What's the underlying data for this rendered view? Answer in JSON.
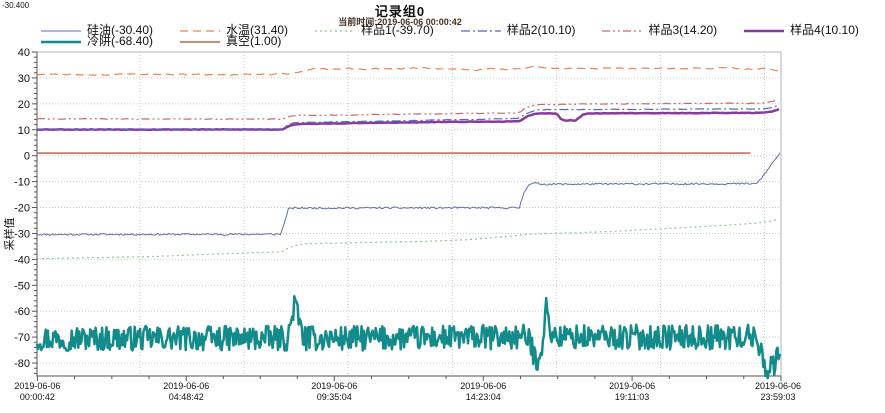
{
  "corner_value": "-30.400",
  "header": {
    "title": "记录组0",
    "subtitle": "当前时间:2019-06-06  00:00:42"
  },
  "colors": {
    "background": "#ffffff",
    "frame": "#b0b0b0",
    "axis": "#555555",
    "grid": "#c9c9c9",
    "text": "#111111",
    "subtitle_text": "#46311f"
  },
  "chart_data": {
    "type": "line",
    "title": "记录组0",
    "subtitle": "当前时间:2019-06-06  00:00:42",
    "ylabel": "采样值",
    "xlabel": "",
    "ylim": [
      -85,
      40
    ],
    "y_ticks": [
      40,
      30,
      20,
      10,
      0,
      -10,
      -20,
      -30,
      -40,
      -50,
      -60,
      -70,
      -80
    ],
    "y_minor_step": 2,
    "grid": true,
    "legend_position": "top-left",
    "x_ticks": [
      {
        "hour": 0.012,
        "date": "2019-06-06",
        "time": "00:00:42"
      },
      {
        "hour": 4.812,
        "date": "2019-06-06",
        "time": "04:48:42"
      },
      {
        "hour": 9.584,
        "date": "2019-06-06",
        "time": "09:35:04"
      },
      {
        "hour": 14.385,
        "date": "2019-06-06",
        "time": "14:23:04"
      },
      {
        "hour": 19.184,
        "date": "2019-06-06",
        "time": "19:11:03"
      },
      {
        "hour": 23.984,
        "date": "2019-06-06",
        "time": "23:59:03"
      }
    ],
    "x_grid_hours": [
      3.32,
      6.68,
      10.03,
      13.39,
      16.74,
      20.1,
      23.45
    ],
    "series": [
      {
        "name": "硅油",
        "current": "-30.40",
        "color": "#5f6cb0",
        "width": 1,
        "dash": "",
        "row": 0,
        "z": 2,
        "noise": 0.35,
        "step": 0.05,
        "seed": 11,
        "points": [
          [
            0,
            -30.4
          ],
          [
            7.85,
            -30.3
          ],
          [
            8.0,
            -25.0
          ],
          [
            8.1,
            -20.6
          ],
          [
            8.3,
            -20.2
          ],
          [
            15.55,
            -20.1
          ],
          [
            15.7,
            -14.0
          ],
          [
            15.85,
            -11.2
          ],
          [
            16.05,
            -10.6
          ],
          [
            16.3,
            -11.0
          ],
          [
            23.2,
            -10.8
          ],
          [
            23.5,
            -6.5
          ],
          [
            23.75,
            -2.0
          ],
          [
            23.984,
            1.3
          ]
        ]
      },
      {
        "name": "水温",
        "current": "31.40",
        "color": "#ee8152",
        "width": 1.2,
        "dash": "8,5",
        "row": 0,
        "z": 3,
        "noise": 0.22,
        "step": 0.12,
        "seed": 23,
        "points": [
          [
            0,
            31.4
          ],
          [
            1,
            31.3
          ],
          [
            2,
            31.2
          ],
          [
            3,
            31.5
          ],
          [
            4,
            31.3
          ],
          [
            5,
            31.4
          ],
          [
            6,
            31.2
          ],
          [
            7,
            31.5
          ],
          [
            7.8,
            31.4
          ],
          [
            8.1,
            31.7
          ],
          [
            8.5,
            32.3
          ],
          [
            8.9,
            33.5
          ],
          [
            9.5,
            33.4
          ],
          [
            10,
            33.6
          ],
          [
            10.5,
            33.3
          ],
          [
            11,
            33.6
          ],
          [
            11.5,
            33.4
          ],
          [
            12,
            33.8
          ],
          [
            12.4,
            34.0
          ],
          [
            12.7,
            33.5
          ],
          [
            13.2,
            33.7
          ],
          [
            13.7,
            33.2
          ],
          [
            14.2,
            33.0
          ],
          [
            14.6,
            33.6
          ],
          [
            15.1,
            33.3
          ],
          [
            15.6,
            33.4
          ],
          [
            16.1,
            34.5
          ],
          [
            16.35,
            33.9
          ],
          [
            16.7,
            33.5
          ],
          [
            17.2,
            33.8
          ],
          [
            17.8,
            33.6
          ],
          [
            18.3,
            33.8
          ],
          [
            19,
            33.6
          ],
          [
            19.5,
            33.7
          ],
          [
            20,
            33.8
          ],
          [
            20.6,
            33.6
          ],
          [
            21.2,
            33.8
          ],
          [
            21.8,
            33.7
          ],
          [
            22.4,
            33.8
          ],
          [
            23,
            33.3
          ],
          [
            23.4,
            33.6
          ],
          [
            23.7,
            33.2
          ],
          [
            23.984,
            32.7
          ]
        ]
      },
      {
        "name": "样品1",
        "current": "-39.70",
        "color": "#93c793",
        "width": 1.2,
        "dash": "2,3",
        "row": 0,
        "z": 1,
        "noise": 0.06,
        "step": 0.12,
        "seed": 5,
        "points": [
          [
            0,
            -39.7
          ],
          [
            1,
            -39.5
          ],
          [
            2,
            -39.3
          ],
          [
            3,
            -39.1
          ],
          [
            4,
            -38.8
          ],
          [
            5,
            -38.3
          ],
          [
            6,
            -37.8
          ],
          [
            7,
            -37.4
          ],
          [
            7.9,
            -37.1
          ],
          [
            8.2,
            -35.0
          ],
          [
            8.6,
            -34.0
          ],
          [
            9.5,
            -33.8
          ],
          [
            11,
            -33.4
          ],
          [
            12.5,
            -33.1
          ],
          [
            14,
            -32.3
          ],
          [
            15.3,
            -31.0
          ],
          [
            15.8,
            -30.3
          ],
          [
            16.5,
            -30.0
          ],
          [
            17.5,
            -29.7
          ],
          [
            18.5,
            -29.2
          ],
          [
            19.5,
            -28.6
          ],
          [
            20.5,
            -28.0
          ],
          [
            21.5,
            -27.3
          ],
          [
            22.5,
            -26.6
          ],
          [
            23.2,
            -26.0
          ],
          [
            23.6,
            -25.4
          ],
          [
            23.984,
            -24.5
          ]
        ]
      },
      {
        "name": "样品2",
        "current": "10.10",
        "color": "#5068c0",
        "width": 1.2,
        "dash": "9,3,2,3",
        "row": 0,
        "z": 7,
        "noise": 0.1,
        "step": 0.12,
        "seed": 31,
        "points": [
          [
            0,
            10.1
          ],
          [
            7.9,
            10.1
          ],
          [
            8.1,
            12.0
          ],
          [
            8.3,
            12.7
          ],
          [
            9,
            12.9
          ],
          [
            10,
            13.1
          ],
          [
            11,
            13.3
          ],
          [
            12,
            13.5
          ],
          [
            13,
            13.8
          ],
          [
            14,
            14.0
          ],
          [
            15.55,
            14.4
          ],
          [
            15.75,
            16.2
          ],
          [
            16.05,
            17.6
          ],
          [
            16.5,
            17.8
          ],
          [
            17.5,
            17.8
          ],
          [
            18.5,
            17.9
          ],
          [
            20,
            17.9
          ],
          [
            21.5,
            18.0
          ],
          [
            23,
            18.0
          ],
          [
            23.4,
            18.1
          ],
          [
            23.7,
            18.6
          ],
          [
            23.984,
            19.6
          ]
        ]
      },
      {
        "name": "样品3",
        "current": "14.20",
        "color": "#ca6868",
        "width": 1.2,
        "dash": "8,3,2,3,2,3",
        "row": 0,
        "z": 8,
        "noise": 0.13,
        "step": 0.12,
        "seed": 41,
        "points": [
          [
            0,
            14.2
          ],
          [
            7.9,
            14.1
          ],
          [
            8.1,
            15.0
          ],
          [
            8.35,
            15.5
          ],
          [
            9,
            15.6
          ],
          [
            10,
            15.7
          ],
          [
            11,
            15.9
          ],
          [
            12,
            16.0
          ],
          [
            13,
            16.2
          ],
          [
            14,
            16.3
          ],
          [
            15.55,
            16.6
          ],
          [
            15.75,
            18.4
          ],
          [
            16.05,
            19.6
          ],
          [
            16.6,
            19.8
          ],
          [
            17.5,
            19.9
          ],
          [
            18.5,
            20.0
          ],
          [
            20,
            20.1
          ],
          [
            21.5,
            20.2
          ],
          [
            23,
            20.2
          ],
          [
            23.4,
            20.4
          ],
          [
            23.7,
            20.9
          ],
          [
            23.984,
            21.8
          ]
        ]
      },
      {
        "name": "样品4",
        "current": "10.10",
        "color": "#8a3a9a",
        "width": 2.5,
        "dash": "",
        "row": 0,
        "z": 6,
        "noise": 0.09,
        "step": 0.08,
        "seed": 53,
        "points": [
          [
            0,
            10.1
          ],
          [
            7.9,
            10.1
          ],
          [
            8.15,
            11.6
          ],
          [
            8.4,
            12.2
          ],
          [
            9,
            12.3
          ],
          [
            10,
            12.5
          ],
          [
            11,
            12.7
          ],
          [
            12,
            12.8
          ],
          [
            13,
            13.0
          ],
          [
            14,
            13.1
          ],
          [
            15.55,
            13.2
          ],
          [
            15.8,
            15.3
          ],
          [
            16.1,
            16.2
          ],
          [
            16.55,
            16.3
          ],
          [
            16.75,
            16.3
          ],
          [
            16.9,
            13.9
          ],
          [
            17.05,
            13.5
          ],
          [
            17.2,
            13.8
          ],
          [
            17.35,
            13.4
          ],
          [
            17.6,
            15.9
          ],
          [
            17.8,
            16.3
          ],
          [
            19,
            16.4
          ],
          [
            20.5,
            16.4
          ],
          [
            22,
            16.5
          ],
          [
            23.1,
            16.5
          ],
          [
            23.5,
            16.7
          ],
          [
            23.75,
            17.2
          ],
          [
            23.984,
            18.3
          ]
        ]
      },
      {
        "name": "冷阱",
        "current": "-68.40",
        "color": "#148b8b",
        "width": 2.5,
        "dash": "",
        "row": 1,
        "z": 4,
        "noise": 4.8,
        "step": 0.035,
        "seed": 97,
        "points": [
          [
            0,
            -70.5
          ],
          [
            8.1,
            -70.5
          ],
          [
            8.3,
            -56.5
          ],
          [
            8.45,
            -64.0
          ],
          [
            8.6,
            -70.5
          ],
          [
            10,
            -70.5
          ],
          [
            15.8,
            -70.0
          ],
          [
            15.95,
            -74.0
          ],
          [
            16.1,
            -79.5
          ],
          [
            16.3,
            -72.0
          ],
          [
            16.4,
            -58.5
          ],
          [
            16.55,
            -67.0
          ],
          [
            16.7,
            -70.0
          ],
          [
            23.2,
            -70.0
          ],
          [
            23.35,
            -76.0
          ],
          [
            23.5,
            -81.5
          ],
          [
            23.75,
            -81.5
          ],
          [
            23.9,
            -77.0
          ],
          [
            23.984,
            -74.0
          ]
        ]
      },
      {
        "name": "真空",
        "current": "1.00",
        "color": "#b4684f",
        "width": 1.5,
        "dash": "",
        "row": 1,
        "z": 5,
        "noise": 0,
        "step": 1,
        "seed": 1,
        "points": [
          [
            0,
            1.0
          ],
          [
            23.984,
            1.0
          ]
        ]
      }
    ]
  }
}
